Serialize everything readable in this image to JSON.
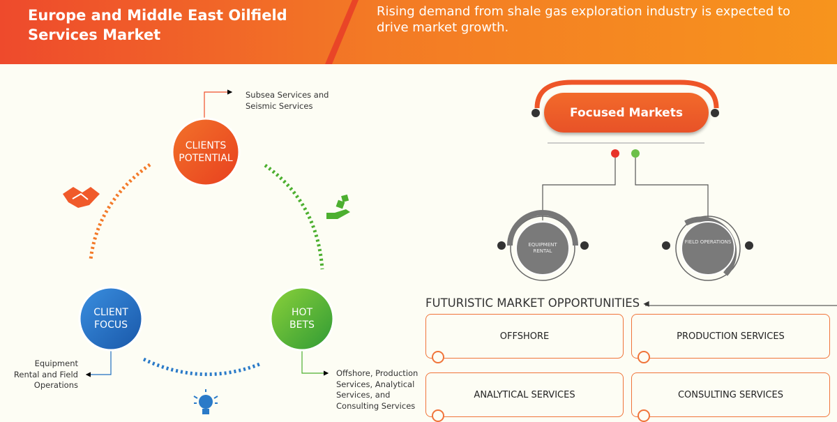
{
  "header": {
    "title": "Europe and Middle East Oilfield Services Market",
    "tagline": "Rising demand from shale gas exploration industry is expected to drive market growth."
  },
  "cycle": {
    "clients_potential": {
      "label": "CLIENTS POTENTIAL",
      "note": "Subsea Services and Seismic Services",
      "color": "#f04e2a"
    },
    "client_focus": {
      "label": "CLIENT FOCUS",
      "note": "Equipment Rental and Field Operations",
      "color": "#1f6fc0"
    },
    "hot_bets": {
      "label": "HOT BETS",
      "note": "Offshore, Production Services, Analytical Services, and Consulting Services",
      "color": "#4caf2f"
    },
    "icons": [
      "handshake-icon",
      "hand-dice-icon",
      "lightbulb-icon"
    ]
  },
  "focused": {
    "title": "Focused Markets",
    "markets": [
      "EQUIPMENT RENTAL",
      "FIELD OPERATIONS"
    ]
  },
  "opportunities": {
    "title": "FUTURISTIC MARKET OPPORTUNITIES",
    "items": [
      "OFFSHORE",
      "PRODUCTION SERVICES",
      "ANALYTICAL SERVICES",
      "CONSULTING SERVICES"
    ]
  }
}
